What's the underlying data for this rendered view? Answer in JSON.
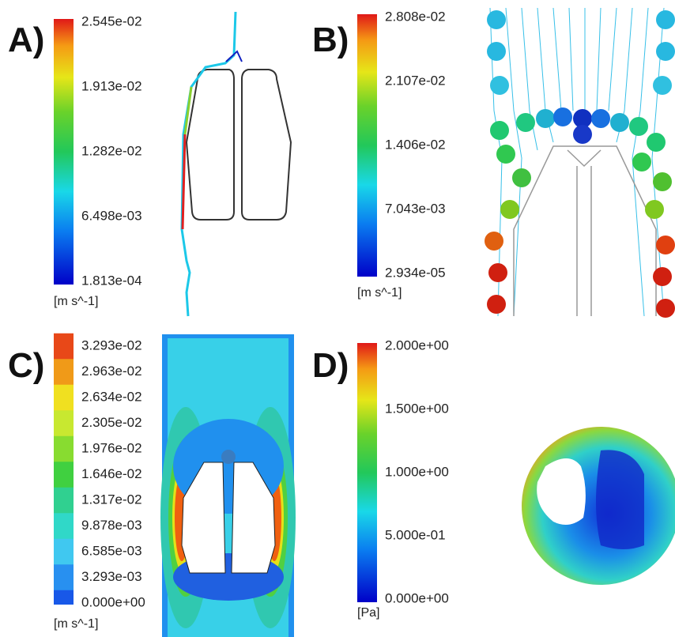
{
  "panels": [
    {
      "label": "A)",
      "ticks": [
        "2.545e-02",
        "1.913e-02",
        "1.282e-02",
        "6.498e-03",
        "1.813e-04"
      ],
      "unit": "[m s^-1]"
    },
    {
      "label": "B)",
      "ticks": [
        "2.808e-02",
        "2.107e-02",
        "1.406e-02",
        "7.043e-03",
        "2.934e-05"
      ],
      "unit": "[m s^-1]"
    },
    {
      "label": "C)",
      "ticks": [
        "3.293e-02",
        "2.963e-02",
        "2.634e-02",
        "2.305e-02",
        "1.976e-02",
        "1.646e-02",
        "1.317e-02",
        "9.878e-03",
        "6.585e-03",
        "3.293e-03",
        "0.000e+00"
      ],
      "unit": "[m s^-1]"
    },
    {
      "label": "D)",
      "ticks": [
        "2.000e+00",
        "1.500e+00",
        "1.000e+00",
        "5.000e-01",
        "0.000e+00"
      ],
      "unit": "[Pa]"
    }
  ]
}
